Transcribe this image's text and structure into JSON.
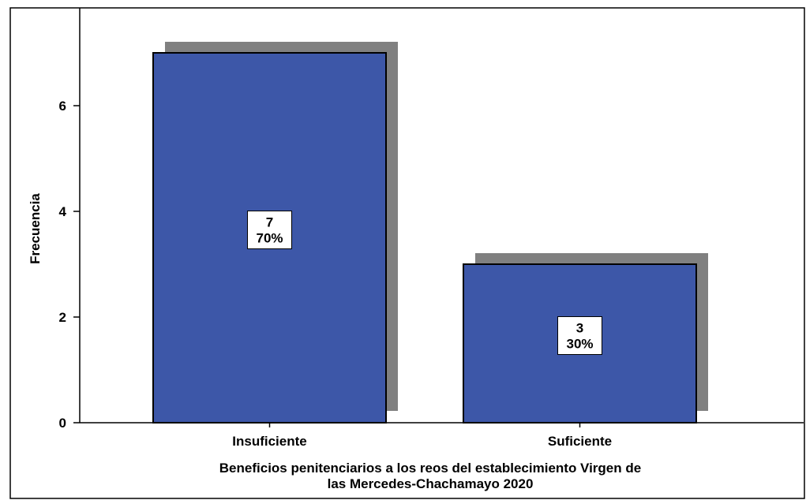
{
  "chart_data": {
    "type": "bar",
    "categories": [
      "Insuficiente",
      "Suficiente"
    ],
    "values": [
      7,
      3
    ],
    "percent_labels": [
      "70%",
      "30%"
    ],
    "count_labels": [
      "7",
      "3"
    ],
    "ylabel": "Frecuencia",
    "xlabel_line1": "Beneficios penitenciarios a los reos del establecimiento Virgen de",
    "xlabel_line2": "las Mercedes-Chachamayo 2020",
    "y_ticks": [
      "0",
      "2",
      "4",
      "6"
    ],
    "ylim": [
      0,
      7.8
    ],
    "grid": false,
    "bar_color": "#3d57a8",
    "shadow_color": "#808080"
  }
}
